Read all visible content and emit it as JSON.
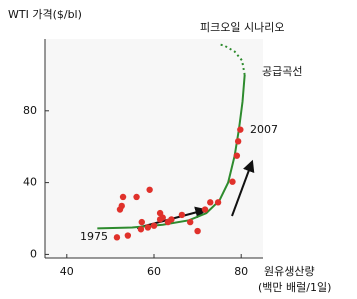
{
  "chart_data": {
    "type": "scatter",
    "y_label": "WTI 가격($/bl)",
    "x_label": "원유생산량",
    "x_unit_label": "(백만 배럴/1일)",
    "annotations": [
      "피크오일 시나리오",
      "공급곡선",
      "2007",
      "1975"
    ],
    "xlim": [
      35,
      85
    ],
    "ylim": [
      -2,
      120
    ],
    "xticks": [
      40,
      60,
      80
    ],
    "yticks": [
      0,
      40,
      80
    ],
    "points": {
      "color": "#e0312b",
      "x": [
        54,
        51.5,
        52.2,
        52.9,
        52.6,
        56,
        59,
        57,
        58.6,
        57.2,
        60,
        61.4,
        62,
        61.4,
        63.2,
        64,
        66.4,
        68.3,
        70,
        71.7,
        72.9,
        74.7,
        78,
        79,
        79.3,
        79.8
      ],
      "values": [
        10.5,
        9.5,
        25,
        32,
        27,
        32,
        36,
        14,
        15,
        18,
        16,
        23,
        20.5,
        19.5,
        18,
        19.5,
        22,
        18,
        13,
        25,
        29,
        29,
        40.5,
        55,
        63,
        69.5
      ]
    },
    "curve": {
      "color": "#2e8b2e",
      "x": [
        47,
        55,
        62,
        68,
        72,
        75,
        77,
        78.5,
        79.5,
        80.3,
        80.8
      ],
      "values": [
        14.5,
        15,
        16.5,
        19,
        23,
        30,
        40,
        55,
        70,
        85,
        100
      ]
    },
    "peak_curve": {
      "color": "#2e8b2e",
      "x": [
        80.8,
        80.2,
        78.5,
        76,
        74.7
      ],
      "values": [
        100,
        108,
        113,
        116.5,
        117
      ]
    }
  }
}
